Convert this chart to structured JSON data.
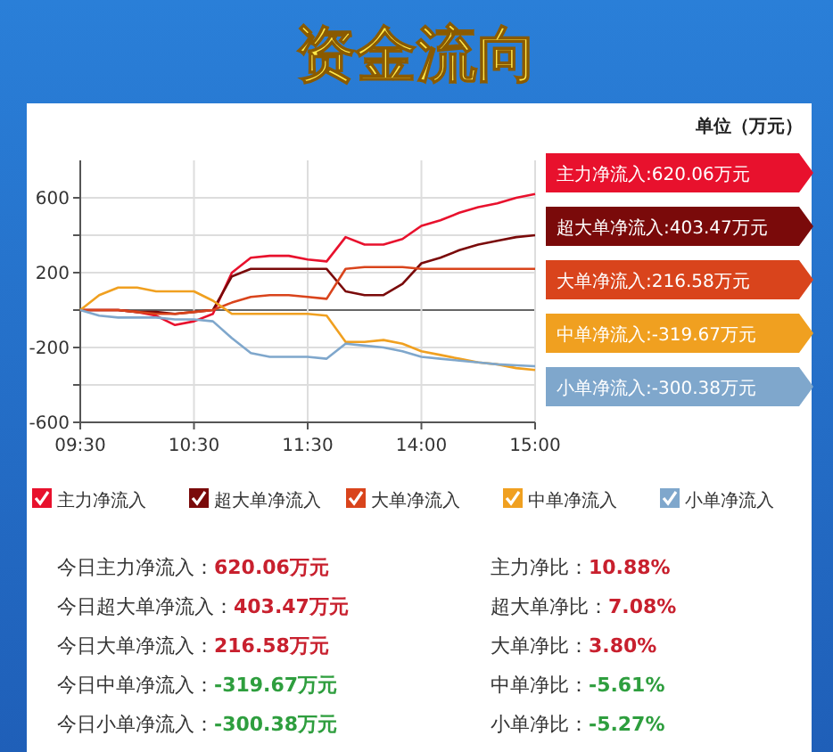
{
  "chart_data": {
    "type": "line",
    "title": "资金流向",
    "categories": [
      "09:30",
      null,
      null,
      null,
      null,
      null,
      "10:30",
      null,
      null,
      null,
      null,
      null,
      "11:30",
      null,
      null,
      null,
      null,
      null,
      "14:00",
      null,
      null,
      null,
      null,
      null,
      "15:00"
    ],
    "ylim": [
      -600,
      800
    ],
    "yticks": [
      -600,
      {
        "value": -400,
        "label": null
      },
      -200,
      {
        "value": 0,
        "label": null
      },
      200,
      {
        "value": 400,
        "label": null
      },
      600
    ],
    "grid": true,
    "legend": "bottom",
    "marker": "none",
    "line_style": "solid",
    "series": [
      {
        "name": "主力净流入",
        "color": "#e8112d",
        "values": [
          0,
          0,
          0,
          -10,
          -30,
          -80,
          -60,
          -20,
          200,
          280,
          290,
          290,
          270,
          260,
          390,
          350,
          350,
          380,
          450,
          480,
          520,
          550,
          570,
          600,
          620
        ]
      },
      {
        "name": "超大单净流入",
        "color": "#7a0a0a",
        "values": [
          0,
          0,
          0,
          -10,
          -10,
          -20,
          -10,
          0,
          180,
          220,
          220,
          220,
          220,
          220,
          100,
          80,
          80,
          140,
          250,
          280,
          320,
          350,
          370,
          390,
          400
        ]
      },
      {
        "name": "大单净流入",
        "color": "#d9441c",
        "values": [
          0,
          0,
          0,
          -10,
          -20,
          -20,
          -10,
          0,
          40,
          70,
          80,
          80,
          70,
          60,
          220,
          230,
          230,
          230,
          220,
          220,
          220,
          220,
          220,
          220,
          220
        ]
      },
      {
        "name": "中单净流入",
        "color": "#f0a020",
        "values": [
          0,
          80,
          120,
          120,
          100,
          100,
          100,
          50,
          -20,
          -20,
          -20,
          -20,
          -20,
          -30,
          -170,
          -170,
          -160,
          -180,
          -220,
          -240,
          -260,
          -280,
          -290,
          -310,
          -320
        ]
      },
      {
        "name": "小单净流入",
        "color": "#7fa7cc",
        "values": [
          0,
          -30,
          -40,
          -40,
          -40,
          -50,
          -50,
          -60,
          -150,
          -230,
          -250,
          -250,
          -250,
          -260,
          -180,
          -190,
          -200,
          -220,
          -250,
          -260,
          -270,
          -280,
          -290,
          -295,
          -300
        ]
      }
    ],
    "annotations": [
      "单位（万元）",
      "主力净流入:620.06万元",
      "超大单净流入:403.47万元",
      "大单净流入:216.58万元",
      "中单净流入:-319.67万元",
      "小单净流入:-300.38万元",
      "今日主力净流入：620.06万元",
      "主力净比：10.88%",
      "今日超大单净流入：403.47万元",
      "超大单净比：7.08%",
      "今日大单净流入：216.58万元",
      "大单净比：3.80%",
      "今日中单净流入：-319.67万元",
      "中单净比：-5.61%",
      "今日小单净流入：-300.38万元",
      "小单净比：-5.27%"
    ]
  }
}
